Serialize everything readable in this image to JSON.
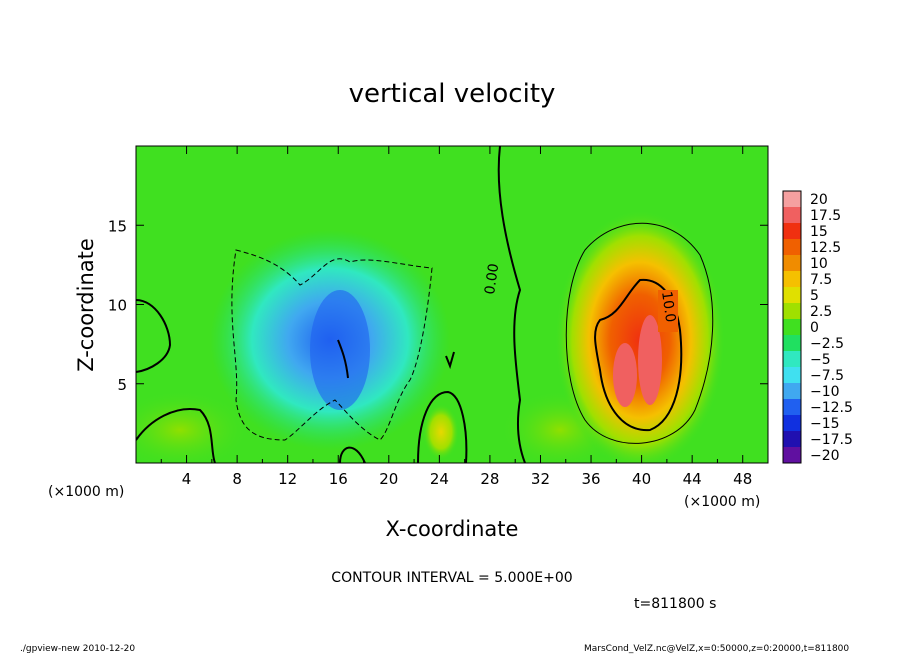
{
  "chart_data": {
    "type": "heatmap",
    "title": "vertical velocity",
    "xlabel": "X-coordinate",
    "ylabel": "Z-coordinate",
    "x_unit": "(×1000 m)",
    "x_unit_right": "(×1000 m)",
    "xlim": [
      0,
      50
    ],
    "ylim": [
      0,
      20
    ],
    "x_ticks": [
      4,
      8,
      12,
      16,
      20,
      24,
      28,
      32,
      36,
      40,
      44,
      48
    ],
    "y_ticks": [
      5,
      10,
      15
    ],
    "colorbar": {
      "labels": [
        "20",
        "17.5",
        "15",
        "12.5",
        "10",
        "7.5",
        "5",
        "2.5",
        "0",
        "−2.5",
        "−5",
        "−7.5",
        "−10",
        "−12.5",
        "−15",
        "−17.5",
        "−20"
      ],
      "colors": [
        "#f5a0a0",
        "#f06060",
        "#f03010",
        "#f06000",
        "#f08c00",
        "#f5c000",
        "#e0e000",
        "#a0e000",
        "#40e020",
        "#20e060",
        "#30e8c0",
        "#40e0f0",
        "#40a8f0",
        "#2060f0",
        "#1030e0",
        "#2010b0",
        "#6010a0"
      ]
    },
    "contour_labels": [
      "0.00",
      "10.0"
    ],
    "contour_interval": "CONTOUR INTERVAL = 5.000E+00",
    "time": "t=811800 s"
  },
  "footer": {
    "left": "./gpview-new   2010-12-20",
    "right": "MarsCond_VelZ.nc@VelZ,x=0:50000,z=0:20000,t=811800"
  }
}
